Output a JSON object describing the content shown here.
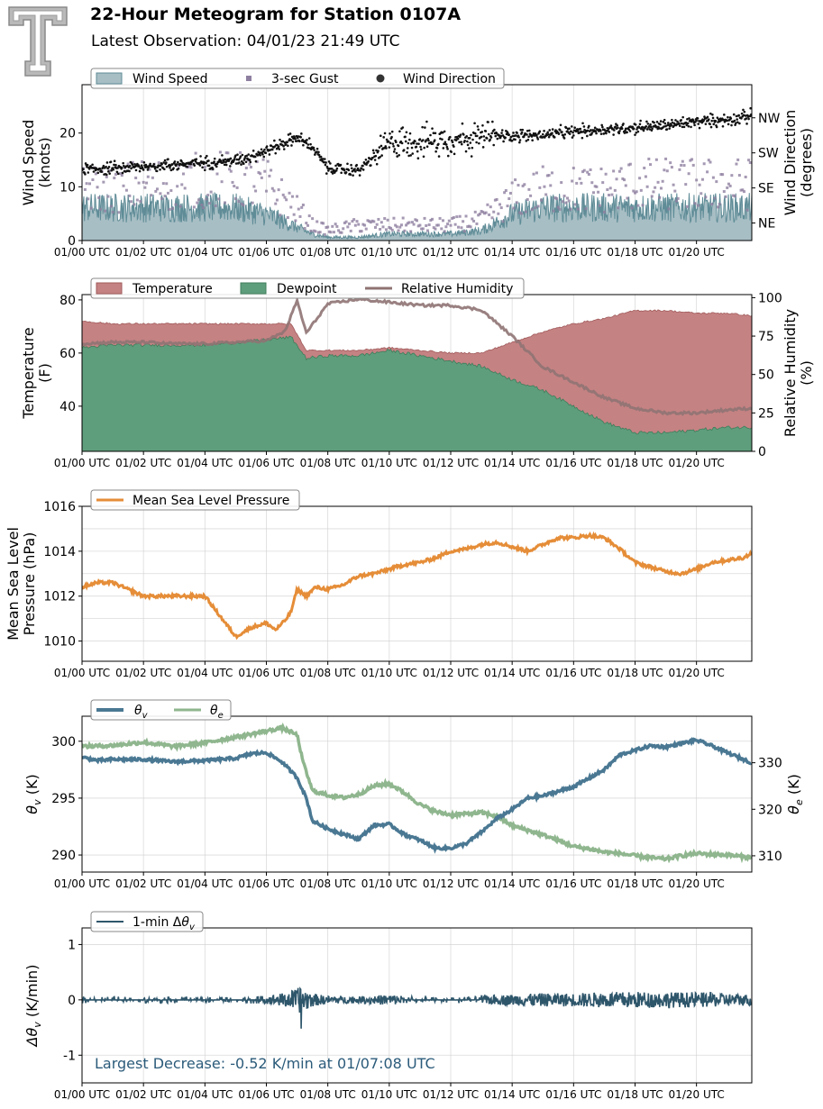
{
  "header": {
    "title": "22-Hour Meteogram for Station 0107A",
    "subtitle": "Latest Observation: 04/01/23 21:49 UTC",
    "logo_icon": "texas-tech-double-t-logo"
  },
  "time_axis": {
    "ticks": [
      "01/00 UTC",
      "01/02 UTC",
      "01/04 UTC",
      "01/06 UTC",
      "01/08 UTC",
      "01/10 UTC",
      "01/12 UTC",
      "01/14 UTC",
      "01/16 UTC",
      "01/18 UTC",
      "01/20 UTC"
    ],
    "tick_hours": [
      0,
      2,
      4,
      6,
      8,
      10,
      12,
      14,
      16,
      18,
      20
    ],
    "range_hours": [
      0,
      21.8
    ]
  },
  "chart_data": [
    {
      "type": "area",
      "id": "wind",
      "ylabel": "Wind Speed\n(knots)",
      "y2label": "Wind Direction\n(degrees)",
      "ylim": [
        0,
        29
      ],
      "yticks": [
        0,
        10,
        20
      ],
      "y2lim": [
        0,
        400
      ],
      "y2ticks": [
        {
          "value": 45,
          "label": "NE"
        },
        {
          "value": 135,
          "label": "SE"
        },
        {
          "value": 225,
          "label": "SW"
        },
        {
          "value": 315,
          "label": "NW"
        }
      ],
      "legend": [
        "Wind Speed",
        "3-sec Gust",
        "Wind Direction"
      ],
      "legend_loc": "top-left",
      "colors": {
        "speed_fill": "#a7bec4",
        "speed_line": "#5f8c97",
        "gust": "#8e7fa0",
        "direction": "#111111"
      },
      "series": [
        {
          "name": "Wind Speed",
          "x": [
            0,
            1,
            2,
            3,
            4,
            5,
            6,
            7,
            7.5,
            8,
            9,
            10,
            11,
            12,
            13,
            14,
            15,
            16,
            17,
            18,
            19,
            20,
            21,
            21.8
          ],
          "values": [
            5,
            5,
            5,
            5,
            5,
            5,
            4,
            2,
            1,
            0.5,
            0.5,
            1,
            1,
            1,
            1.5,
            4,
            5,
            5,
            5,
            5,
            5,
            5,
            5,
            5
          ]
        },
        {
          "name": "3-sec Gust",
          "x": [
            0,
            1,
            2,
            3,
            4,
            5,
            6,
            7,
            7.5,
            8,
            9,
            10,
            11,
            12,
            13,
            14,
            15,
            16,
            17,
            18,
            19,
            20,
            21,
            21.8
          ],
          "values": [
            10,
            10,
            11,
            11,
            12,
            12,
            11,
            6,
            3,
            2,
            3,
            3,
            3,
            3,
            4,
            8,
            10,
            10,
            10,
            11,
            11,
            11,
            11,
            11
          ]
        },
        {
          "name": "Wind Direction",
          "x": [
            0,
            1,
            2,
            3,
            4,
            5,
            6,
            7,
            7.5,
            8,
            9,
            10,
            11,
            12,
            13,
            14,
            15,
            16,
            17,
            18,
            19,
            20,
            21,
            21.8
          ],
          "values": [
            185,
            185,
            190,
            195,
            200,
            205,
            230,
            265,
            240,
            185,
            180,
            250,
            255,
            260,
            265,
            270,
            270,
            280,
            285,
            290,
            295,
            305,
            310,
            320
          ]
        }
      ]
    },
    {
      "type": "area",
      "id": "thermo",
      "ylabel": "Temperature\n(F)",
      "y2label": "Relative Humidity\n(%)",
      "ylim": [
        23,
        82
      ],
      "yticks": [
        40,
        60,
        80
      ],
      "y2lim": [
        0,
        102
      ],
      "y2ticks": [
        0,
        25,
        50,
        75,
        100
      ],
      "legend": [
        "Temperature",
        "Dewpoint",
        "Relative Humidity"
      ],
      "legend_loc": "top-left",
      "colors": {
        "temperature": "#c58283",
        "dewpoint": "#5f9e7d",
        "rh": "#8f7373",
        "rh_dark": "#6e3b3b"
      },
      "series": [
        {
          "name": "Temperature",
          "x": [
            0,
            1,
            2,
            3,
            4,
            5,
            6,
            6.8,
            7.3,
            8,
            9,
            10,
            11,
            12,
            13,
            14,
            15,
            16,
            17,
            18,
            19,
            20,
            21,
            21.8
          ],
          "values": [
            72,
            71,
            71,
            71,
            71,
            71,
            71,
            71,
            61,
            61,
            61,
            62,
            61,
            60,
            60,
            64,
            68,
            71,
            73,
            76,
            76,
            75,
            75,
            74
          ]
        },
        {
          "name": "Dewpoint",
          "x": [
            0,
            1,
            2,
            3,
            4,
            5,
            6,
            6.8,
            7.3,
            8,
            9,
            10,
            11,
            12,
            13,
            14,
            15,
            16,
            17,
            18,
            19,
            20,
            21,
            21.8
          ],
          "values": [
            62,
            63,
            63,
            63,
            63,
            64,
            65,
            66,
            58,
            59,
            59,
            61,
            59,
            57,
            55,
            50,
            46,
            40,
            34,
            30,
            30,
            31,
            32,
            32
          ]
        },
        {
          "name": "Relative Humidity",
          "x": [
            0,
            1,
            2,
            3,
            4,
            5,
            6,
            6.6,
            7,
            7.3,
            8,
            9,
            10,
            11,
            12,
            13,
            14,
            15,
            16,
            17,
            18,
            19,
            20,
            21,
            21.8
          ],
          "values": [
            70,
            71,
            71,
            70,
            70,
            71,
            72,
            78,
            98,
            77,
            96,
            99,
            97,
            95,
            95,
            92,
            75,
            55,
            45,
            35,
            28,
            25,
            25,
            27,
            28
          ]
        }
      ]
    },
    {
      "type": "line",
      "id": "pressure",
      "ylabel": "Mean Sea Level\nPressure (hPa)",
      "ylim": [
        1009.1,
        1016
      ],
      "yticks": [
        1010,
        1012,
        1014,
        1016
      ],
      "legend": [
        "Mean Sea Level Pressure"
      ],
      "legend_loc": "top-left",
      "colors": {
        "line": "#e58d38"
      },
      "series": [
        {
          "name": "Mean Sea Level Pressure",
          "x": [
            0,
            0.5,
            1,
            1.5,
            2,
            3,
            4,
            4.5,
            5,
            5.5,
            6,
            6.3,
            6.6,
            6.8,
            7,
            7.3,
            7.6,
            8,
            8.5,
            9,
            9.5,
            10,
            10.5,
            11,
            11.5,
            12,
            12.5,
            13,
            13.5,
            14,
            14.5,
            15,
            15.5,
            16,
            16.5,
            17,
            17.5,
            18,
            18.5,
            19,
            19.5,
            20,
            20.5,
            21,
            21.5,
            21.8
          ],
          "values": [
            1012.4,
            1012.6,
            1012.6,
            1012.3,
            1012.0,
            1012.0,
            1012.0,
            1011.1,
            1010.2,
            1010.6,
            1010.8,
            1010.5,
            1010.9,
            1011.3,
            1012.3,
            1012.0,
            1012.4,
            1012.3,
            1012.5,
            1012.9,
            1013.0,
            1013.2,
            1013.4,
            1013.5,
            1013.7,
            1014.0,
            1014.1,
            1014.3,
            1014.4,
            1014.2,
            1014.0,
            1014.3,
            1014.6,
            1014.6,
            1014.7,
            1014.6,
            1014.1,
            1013.5,
            1013.3,
            1013.1,
            1013.0,
            1013.2,
            1013.5,
            1013.6,
            1013.7,
            1013.9
          ]
        }
      ]
    },
    {
      "type": "line",
      "id": "theta",
      "ylabel": "θv (K)",
      "y2label": "θe (K)",
      "ylim": [
        288.5,
        302.2
      ],
      "yticks": [
        290,
        295,
        300
      ],
      "y2lim": [
        306.5,
        340
      ],
      "y2ticks": [
        310,
        320,
        330
      ],
      "legend": [
        "θv",
        "θe"
      ],
      "legend_loc": "top-left",
      "colors": {
        "theta_v": "#4a7893",
        "theta_e": "#8fb68e"
      },
      "series": [
        {
          "name": "θv",
          "x": [
            0,
            0.5,
            1,
            2,
            3,
            4,
            5,
            5.5,
            6,
            6.5,
            7,
            7.3,
            7.5,
            8,
            9,
            9.5,
            10,
            10.5,
            11,
            11.5,
            12,
            12.5,
            13,
            13.5,
            14,
            14.5,
            15,
            16,
            17,
            17.5,
            18,
            18.5,
            19,
            19.5,
            20,
            20.5,
            21,
            21.8
          ],
          "values": [
            298.6,
            298.3,
            298.4,
            298.4,
            298.2,
            298.3,
            298.5,
            298.9,
            299.0,
            298.2,
            296.8,
            295.0,
            293.0,
            292.3,
            291.4,
            292.6,
            292.7,
            291.8,
            291.3,
            290.6,
            290.6,
            291.0,
            292.0,
            293.2,
            294.0,
            295.0,
            295.2,
            296.0,
            297.5,
            298.8,
            299.2,
            299.6,
            299.5,
            299.8,
            300.1,
            299.6,
            299.0,
            298.1
          ]
        },
        {
          "name": "θe",
          "x": [
            0,
            1,
            2,
            3,
            4,
            5,
            6,
            6.5,
            7,
            7.2,
            7.5,
            8,
            8.5,
            9,
            9.5,
            10,
            10.5,
            11,
            11.5,
            12,
            12.5,
            13,
            13.5,
            14,
            14.5,
            15,
            15.5,
            16,
            16.5,
            17,
            17.5,
            18,
            18.5,
            19,
            19.5,
            20,
            20.5,
            21,
            21.8
          ],
          "values": [
            333.5,
            333.7,
            334.4,
            333.5,
            334.3,
            335.5,
            336.8,
            337.5,
            336.0,
            330.0,
            324.0,
            323.0,
            322.5,
            323.2,
            325.0,
            325.5,
            323.5,
            321.0,
            319.5,
            318.8,
            319.0,
            319.3,
            318.5,
            316.5,
            315.5,
            314.5,
            313.3,
            312.0,
            311.5,
            310.8,
            310.5,
            310.0,
            309.6,
            309.3,
            310.0,
            310.5,
            310.3,
            310.2,
            309.6
          ]
        }
      ]
    },
    {
      "type": "line",
      "id": "dtheta",
      "ylabel": "Δθv (K/min)",
      "ylim": [
        -1.5,
        1.3
      ],
      "yticks": [
        -1,
        0,
        1
      ],
      "legend": [
        "1-min Δθv"
      ],
      "legend_loc": "top-left",
      "annotation": "Largest Decrease: -0.52 K/min at 01/07:08 UTC",
      "colors": {
        "line": "#2e566b",
        "annotation": "#2b5b7a"
      },
      "series": [
        {
          "name": "1-min Δθv",
          "x": [
            0,
            1,
            2,
            3,
            4,
            5,
            6,
            6.5,
            7,
            7.13,
            7.5,
            8,
            9,
            10,
            11,
            12,
            13,
            14,
            15,
            16,
            17,
            18,
            19,
            20,
            21,
            21.8
          ],
          "amplitude": [
            0.06,
            0.06,
            0.06,
            0.06,
            0.06,
            0.06,
            0.07,
            0.12,
            0.2,
            0.26,
            0.12,
            0.07,
            0.06,
            0.1,
            0.05,
            0.05,
            0.08,
            0.1,
            0.12,
            0.12,
            0.14,
            0.15,
            0.14,
            0.14,
            0.12,
            0.1
          ]
        }
      ]
    }
  ]
}
